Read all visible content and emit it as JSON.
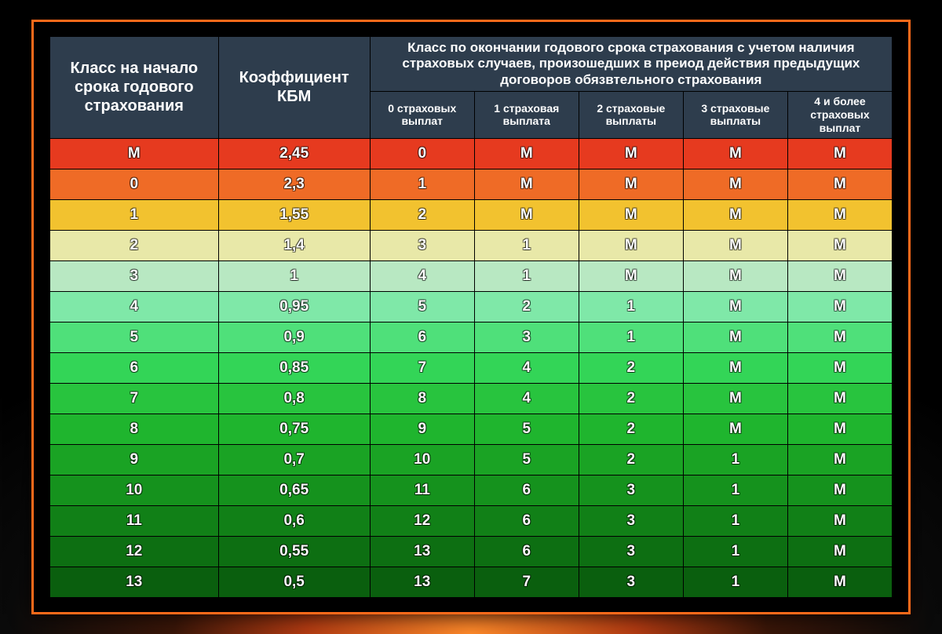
{
  "table": {
    "header": {
      "class_start": "Класс на начало срока годового страхования",
      "coef": "Коэффициент КБМ",
      "span": "Класс по окончании годового срока страхования с учетом наличия страховых случаев, произошедших в преиод действия предыдущих договоров обязвтельного страхования",
      "sub": [
        "0 страховых выплат",
        "1 страховая выплата",
        "2 страховые выплаты",
        "3 страховые выплаты",
        "4 и более страховых выплат"
      ]
    },
    "rows": [
      {
        "cls": "М",
        "coef": "2,45",
        "p": [
          "0",
          "М",
          "М",
          "М",
          "М"
        ],
        "bg": "#e63a1f"
      },
      {
        "cls": "0",
        "coef": "2,3",
        "p": [
          "1",
          "М",
          "М",
          "М",
          "М"
        ],
        "bg": "#ef6b26"
      },
      {
        "cls": "1",
        "coef": "1,55",
        "p": [
          "2",
          "М",
          "М",
          "М",
          "М"
        ],
        "bg": "#f2c22f"
      },
      {
        "cls": "2",
        "coef": "1,4",
        "p": [
          "3",
          "1",
          "М",
          "М",
          "М"
        ],
        "bg": "#e8e8a8"
      },
      {
        "cls": "3",
        "coef": "1",
        "p": [
          "4",
          "1",
          "М",
          "М",
          "М"
        ],
        "bg": "#b8e8c2"
      },
      {
        "cls": "4",
        "coef": "0,95",
        "p": [
          "5",
          "2",
          "1",
          "М",
          "М"
        ],
        "bg": "#7fe8a8"
      },
      {
        "cls": "5",
        "coef": "0,9",
        "p": [
          "6",
          "3",
          "1",
          "М",
          "М"
        ],
        "bg": "#4fe07a"
      },
      {
        "cls": "6",
        "coef": "0,85",
        "p": [
          "7",
          "4",
          "2",
          "М",
          "М"
        ],
        "bg": "#33d557"
      },
      {
        "cls": "7",
        "coef": "0,8",
        "p": [
          "8",
          "4",
          "2",
          "М",
          "М"
        ],
        "bg": "#28c43e"
      },
      {
        "cls": "8",
        "coef": "0,75",
        "p": [
          "9",
          "5",
          "2",
          "М",
          "М"
        ],
        "bg": "#1fb52e"
      },
      {
        "cls": "9",
        "coef": "0,7",
        "p": [
          "10",
          "5",
          "2",
          "1",
          "М"
        ],
        "bg": "#1aa324"
      },
      {
        "cls": "10",
        "coef": "0,65",
        "p": [
          "11",
          "6",
          "3",
          "1",
          "М"
        ],
        "bg": "#15921d"
      },
      {
        "cls": "11",
        "coef": "0,6",
        "p": [
          "12",
          "6",
          "3",
          "1",
          "М"
        ],
        "bg": "#118017"
      },
      {
        "cls": "12",
        "coef": "0,55",
        "p": [
          "13",
          "6",
          "3",
          "1",
          "М"
        ],
        "bg": "#0d6f12"
      },
      {
        "cls": "13",
        "coef": "0,5",
        "p": [
          "13",
          "7",
          "3",
          "1",
          "М"
        ],
        "bg": "#0a5f0e"
      }
    ],
    "style": {
      "header_bg": "#2e3d4d",
      "header_text": "#ffffff",
      "cell_text": "#ffffff",
      "border_color": "#000000",
      "header_main_fontsize": 20,
      "header_sub_fontsize": 14,
      "body_fontsize": 19,
      "body_fontweight": 800,
      "outer_border_color": "#ff6a1a",
      "outer_border_width": 3,
      "background_gradient": [
        "#ff8a2a",
        "#b33b12",
        "#3a1608",
        "#0a0a0a",
        "#000000"
      ]
    }
  }
}
